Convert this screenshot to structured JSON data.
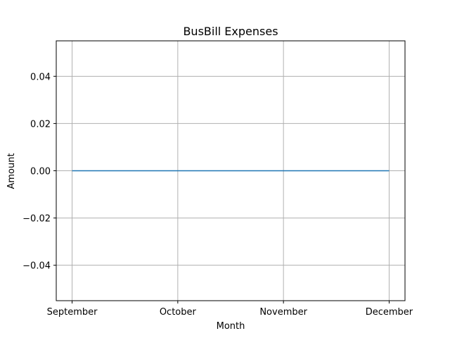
{
  "chart_data": {
    "type": "line",
    "title": "BusBill Expenses",
    "xlabel": "Month",
    "ylabel": "Amount",
    "categories": [
      "September",
      "October",
      "November",
      "December"
    ],
    "series": [
      {
        "name": "BusBill",
        "values": [
          0,
          0,
          0,
          0
        ],
        "color": "#1f77b4"
      }
    ],
    "ylim": [
      -0.055,
      0.055
    ],
    "yticks": [
      -0.04,
      -0.02,
      0.0,
      0.02,
      0.04
    ],
    "ytick_labels": [
      "−0.04",
      "−0.02",
      "0.00",
      "0.02",
      "0.04"
    ],
    "grid": true,
    "grid_color": "#b0b0b0",
    "axis_color": "#000000"
  }
}
